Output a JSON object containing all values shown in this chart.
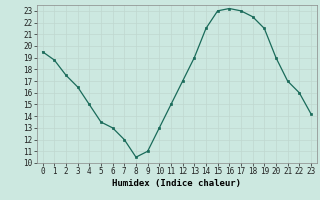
{
  "x": [
    0,
    1,
    2,
    3,
    4,
    5,
    6,
    7,
    8,
    9,
    10,
    11,
    12,
    13,
    14,
    15,
    16,
    17,
    18,
    19,
    20,
    21,
    22,
    23
  ],
  "y": [
    19.5,
    18.8,
    17.5,
    16.5,
    15.0,
    13.5,
    13.0,
    12.0,
    10.5,
    11.0,
    13.0,
    15.0,
    17.0,
    19.0,
    21.5,
    23.0,
    23.2,
    23.0,
    22.5,
    21.5,
    19.0,
    17.0,
    16.0,
    14.2
  ],
  "xlabel": "Humidex (Indice chaleur)",
  "xlim": [
    -0.5,
    23.5
  ],
  "ylim": [
    10,
    23.5
  ],
  "yticks": [
    10,
    11,
    12,
    13,
    14,
    15,
    16,
    17,
    18,
    19,
    20,
    21,
    22,
    23
  ],
  "xticks": [
    0,
    1,
    2,
    3,
    4,
    5,
    6,
    7,
    8,
    9,
    10,
    11,
    12,
    13,
    14,
    15,
    16,
    17,
    18,
    19,
    20,
    21,
    22,
    23
  ],
  "line_color": "#1a6b5a",
  "marker_color": "#1a6b5a",
  "bg_color": "#cce8e0",
  "grid_color": "#c0d8d0",
  "tick_fontsize": 5.5,
  "label_fontsize": 6.5
}
